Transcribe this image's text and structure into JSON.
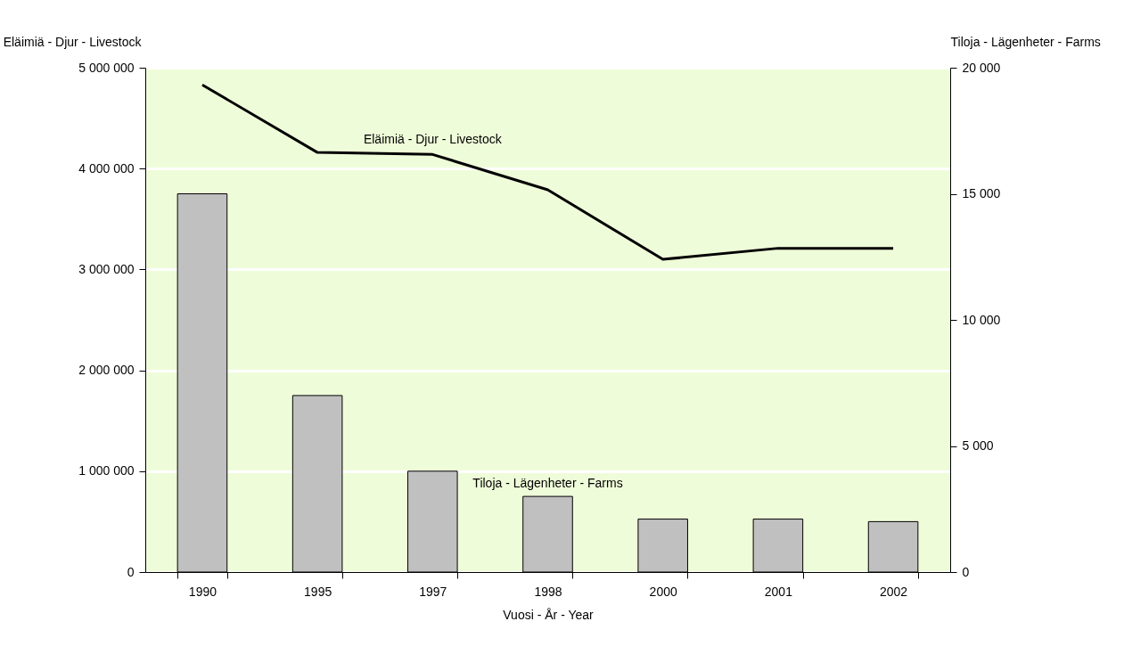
{
  "chart_data": {
    "type": "bar",
    "categories": [
      "1990",
      "1995",
      "1997",
      "1998",
      "2000",
      "2001",
      "2002"
    ],
    "xlabel": "Vuosi - År - Year",
    "ylabel": "Eläimiä - Djur - Livestock",
    "y2label": "Tiloja - Lägenheter - Farms",
    "series": [
      {
        "name": "Tiloja - Lägenheter - Farms",
        "axis": "y2",
        "color": "#c0c0c0",
        "values": [
          15000,
          7000,
          4000,
          3000,
          2100,
          2100,
          2000
        ]
      },
      {
        "name": "Eläimiä - Djur - Livestock",
        "type": "line",
        "axis": "y",
        "color": "#000000",
        "values": [
          4830000,
          4160000,
          4140000,
          3790000,
          3100000,
          3210000,
          3210000
        ]
      }
    ],
    "ylim": [
      0,
      5000000
    ],
    "yticks": [
      {
        "value": 0,
        "label": "0"
      },
      {
        "value": 1000000,
        "label": "1 000 000"
      },
      {
        "value": 2000000,
        "label": "2 000 000"
      },
      {
        "value": 3000000,
        "label": "3 000 000"
      },
      {
        "value": 4000000,
        "label": "4 000 000"
      },
      {
        "value": 5000000,
        "label": "5 000 000"
      }
    ],
    "y2lim": [
      0,
      20000
    ],
    "y2ticks": [
      {
        "value": 0,
        "label": "0"
      },
      {
        "value": 5000,
        "label": "5 000"
      },
      {
        "value": 10000,
        "label": "10 000"
      },
      {
        "value": 15000,
        "label": "15 000"
      },
      {
        "value": 20000,
        "label": "20 000"
      }
    ],
    "grid": "y",
    "legend": false,
    "marker": "none",
    "line_style": "solid"
  }
}
